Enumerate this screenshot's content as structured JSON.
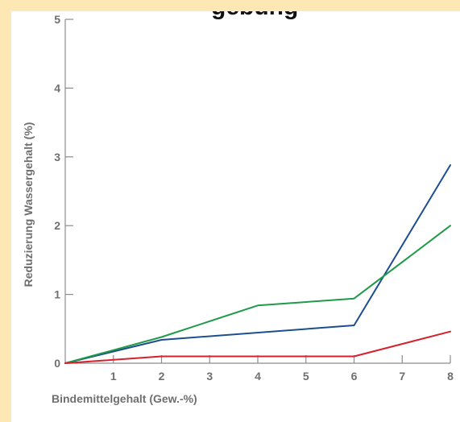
{
  "chart_data": {
    "type": "line",
    "title": "gebung",
    "xlabel": "Bindemittelgehalt (Gew.-%)",
    "ylabel": "Reduzierung Wassergehalt (%)",
    "xlim": [
      0,
      8
    ],
    "ylim": [
      0,
      5
    ],
    "x_ticks": [
      "1",
      "2",
      "3",
      "4",
      "5",
      "6",
      "7",
      "8"
    ],
    "y_ticks": [
      "0",
      "1",
      "2",
      "3",
      "4",
      "5"
    ],
    "grid": false,
    "colors": {
      "series_blue": "#1d4e8f",
      "series_green": "#1f9a49",
      "series_red": "#d6202c",
      "axis": "#8c8c8c",
      "frame": "#fde7b4"
    },
    "series": [
      {
        "color": "#1d4e8f",
        "x": [
          0,
          2,
          6,
          8
        ],
        "y": [
          0,
          0.34,
          0.55,
          2.88
        ]
      },
      {
        "color": "#1f9a49",
        "x": [
          0,
          2,
          4,
          6,
          8
        ],
        "y": [
          0,
          0.38,
          0.84,
          0.94,
          2.0
        ]
      },
      {
        "color": "#d6202c",
        "x": [
          0,
          2,
          6,
          8
        ],
        "y": [
          0,
          0.1,
          0.1,
          0.46
        ]
      }
    ]
  }
}
